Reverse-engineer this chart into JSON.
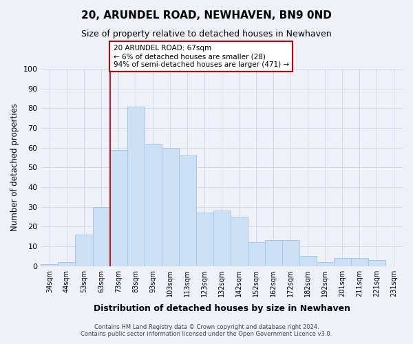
{
  "title": "20, ARUNDEL ROAD, NEWHAVEN, BN9 0ND",
  "subtitle": "Size of property relative to detached houses in Newhaven",
  "xlabel": "Distribution of detached houses by size in Newhaven",
  "ylabel": "Number of detached properties",
  "bar_labels": [
    "34sqm",
    "44sqm",
    "53sqm",
    "63sqm",
    "73sqm",
    "83sqm",
    "93sqm",
    "103sqm",
    "113sqm",
    "123sqm",
    "132sqm",
    "142sqm",
    "152sqm",
    "162sqm",
    "172sqm",
    "182sqm",
    "192sqm",
    "201sqm",
    "211sqm",
    "221sqm",
    "231sqm"
  ],
  "bar_values": [
    1,
    2,
    16,
    30,
    59,
    81,
    62,
    60,
    56,
    27,
    28,
    25,
    12,
    13,
    13,
    5,
    2,
    4,
    4,
    3,
    0
  ],
  "bar_color": "#cce0f5",
  "bar_edge_color": "#a8c8e8",
  "vline_x_index": 3.5,
  "vline_color": "#cc0000",
  "annotation_title": "20 ARUNDEL ROAD: 67sqm",
  "annotation_line1": "← 6% of detached houses are smaller (28)",
  "annotation_line2": "94% of semi-detached houses are larger (471) →",
  "annotation_box_color": "#ffffff",
  "annotation_box_edge": "#cc0000",
  "ylim": [
    0,
    100
  ],
  "yticks": [
    0,
    10,
    20,
    30,
    40,
    50,
    60,
    70,
    80,
    90,
    100
  ],
  "grid_color": "#c8d8e8",
  "background_color": "#eef2f8",
  "footer_line1": "Contains HM Land Registry data © Crown copyright and database right 2024.",
  "footer_line2": "Contains public sector information licensed under the Open Government Licence v3.0."
}
